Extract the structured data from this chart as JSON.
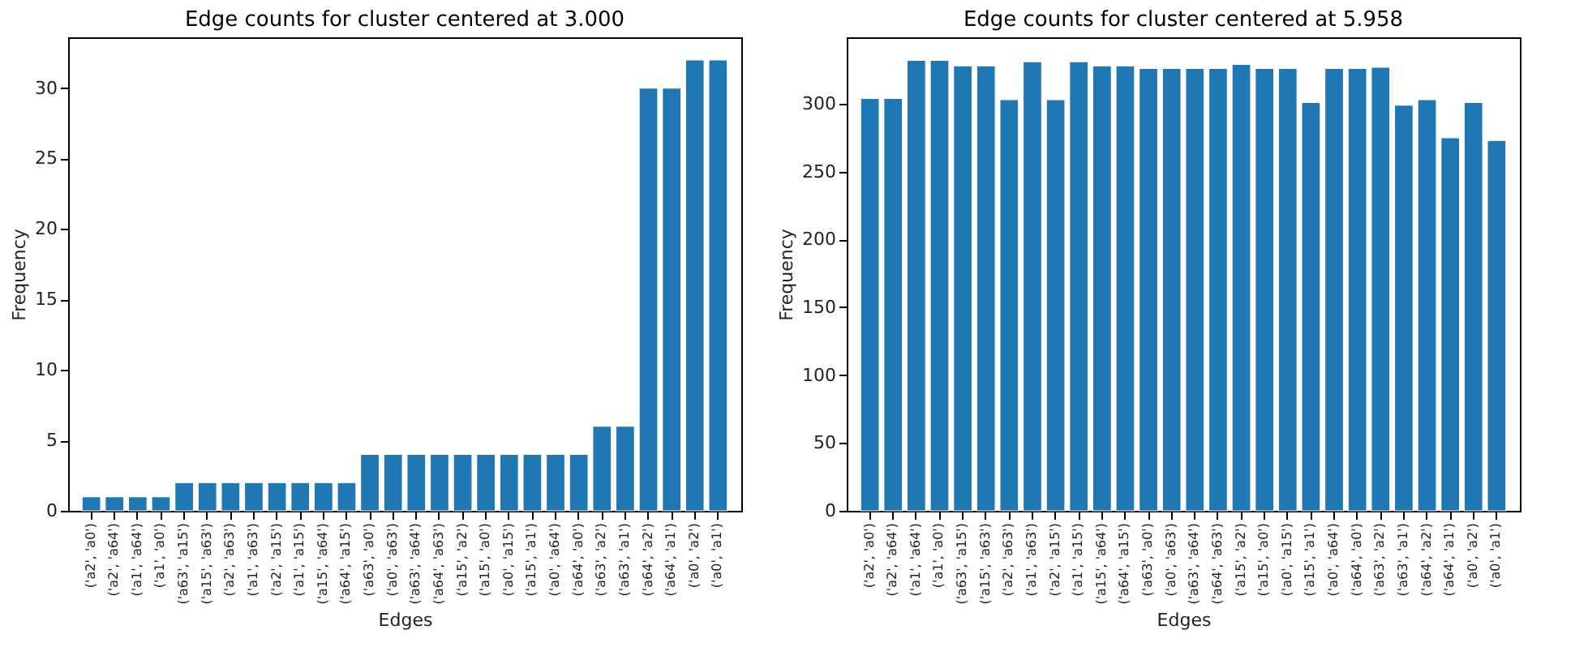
{
  "chart_data": [
    {
      "type": "bar",
      "title": "Edge counts for cluster centered at 3.000",
      "xlabel": "Edges",
      "ylabel": "Frequency",
      "categories": [
        "('a2', 'a0')",
        "('a2', 'a64')",
        "('a1', 'a64')",
        "('a1', 'a0')",
        "('a63', 'a15')",
        "('a15', 'a63')",
        "('a2', 'a63')",
        "('a1', 'a63')",
        "('a2', 'a15')",
        "('a1', 'a15')",
        "('a15', 'a64')",
        "('a64', 'a15')",
        "('a63', 'a0')",
        "('a0', 'a63')",
        "('a63', 'a64')",
        "('a64', 'a63')",
        "('a15', 'a2')",
        "('a15', 'a0')",
        "('a0', 'a15')",
        "('a15', 'a1')",
        "('a0', 'a64')",
        "('a64', 'a0')",
        "('a63', 'a2')",
        "('a63', 'a1')",
        "('a64', 'a2')",
        "('a64', 'a1')",
        "('a0', 'a2')",
        "('a0', 'a1')"
      ],
      "values": [
        1,
        1,
        1,
        1,
        2,
        2,
        2,
        2,
        2,
        2,
        2,
        2,
        4,
        4,
        4,
        4,
        4,
        4,
        4,
        4,
        4,
        4,
        6,
        6,
        30,
        30,
        32,
        32
      ],
      "color": "#1f77b4",
      "ylim": [
        0,
        33.6
      ],
      "yticks": [
        0,
        5,
        10,
        15,
        20,
        25,
        30
      ],
      "grid": false
    },
    {
      "type": "bar",
      "title": "Edge counts for cluster centered at 5.958",
      "xlabel": "Edges",
      "ylabel": "Frequency",
      "categories": [
        "('a2', 'a0')",
        "('a2', 'a64')",
        "('a1', 'a64')",
        "('a1', 'a0')",
        "('a63', 'a15')",
        "('a15', 'a63')",
        "('a2', 'a63')",
        "('a1', 'a63')",
        "('a2', 'a15')",
        "('a1', 'a15')",
        "('a15', 'a64')",
        "('a64', 'a15')",
        "('a63', 'a0')",
        "('a0', 'a63')",
        "('a63', 'a64')",
        "('a64', 'a63')",
        "('a15', 'a2')",
        "('a15', 'a0')",
        "('a0', 'a15')",
        "('a15', 'a1')",
        "('a0', 'a64')",
        "('a64', 'a0')",
        "('a63', 'a2')",
        "('a63', 'a1')",
        "('a64', 'a2')",
        "('a64', 'a1')",
        "('a0', 'a2')",
        "('a0', 'a1')"
      ],
      "values": [
        304,
        304,
        332,
        332,
        328,
        328,
        303,
        331,
        303,
        331,
        328,
        328,
        326,
        326,
        326,
        326,
        329,
        326,
        326,
        301,
        326,
        326,
        327,
        299,
        303,
        275,
        301,
        273
      ],
      "color": "#1f77b4",
      "ylim": [
        0,
        349
      ],
      "yticks": [
        0,
        50,
        100,
        150,
        200,
        250,
        300
      ],
      "grid": false
    }
  ]
}
